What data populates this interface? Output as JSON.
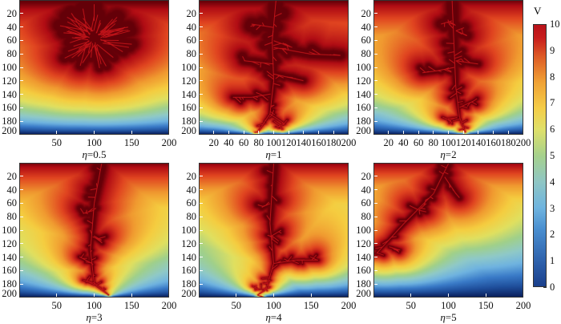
{
  "chart_data": {
    "type": "heatmap",
    "colorbar": {
      "title": "V",
      "range": [
        0,
        10
      ],
      "ticks": [
        "0",
        "1",
        "2",
        "3",
        "4",
        "5",
        "6",
        "7",
        "8",
        "9",
        "10"
      ]
    },
    "colors": [
      "#0a1f5c",
      "#1f4f9c",
      "#3a7bc8",
      "#6fb3e0",
      "#8fc9c8",
      "#a0d08a",
      "#e0e060",
      "#f5cd40",
      "#f09a30",
      "#e04420",
      "#b00c14",
      "#600008"
    ],
    "xlim": [
      0,
      200
    ],
    "ylim": [
      200,
      0
    ],
    "panels": [
      {
        "label_prefix": "η",
        "label_value": "=0.5",
        "xticks": [
          "50",
          "100",
          "150",
          "200"
        ],
        "yticks": [
          "20",
          "40",
          "60",
          "80",
          "100",
          "120",
          "140",
          "160",
          "180",
          "200"
        ]
      },
      {
        "label_prefix": "η",
        "label_value": "=1",
        "xticks": [
          "20",
          "40",
          "60",
          "80",
          "100",
          "120",
          "140",
          "160",
          "180",
          "200"
        ],
        "yticks": [
          "20",
          "40",
          "60",
          "80",
          "100",
          "120",
          "140",
          "160",
          "180",
          "200"
        ]
      },
      {
        "label_prefix": "η",
        "label_value": "=2",
        "xticks": [
          "20",
          "40",
          "60",
          "80",
          "100",
          "120",
          "140",
          "160",
          "180",
          "200"
        ],
        "yticks": [
          "20",
          "40",
          "60",
          "80",
          "100",
          "120",
          "140",
          "160",
          "180",
          "200"
        ]
      },
      {
        "label_prefix": "η",
        "label_value": "=3",
        "xticks": [
          "50",
          "100",
          "150",
          "200"
        ],
        "yticks": [
          "20",
          "40",
          "60",
          "80",
          "100",
          "120",
          "140",
          "160",
          "180",
          "200"
        ]
      },
      {
        "label_prefix": "η",
        "label_value": "=4",
        "xticks": [
          "50",
          "100",
          "150",
          "200"
        ],
        "yticks": [
          "20",
          "40",
          "60",
          "80",
          "100",
          "120",
          "140",
          "160",
          "180",
          "200"
        ]
      },
      {
        "label_prefix": "η",
        "label_value": "=5",
        "xticks": [
          "50",
          "100",
          "150",
          "200"
        ],
        "yticks": [
          "20",
          "40",
          "60",
          "80",
          "100",
          "120",
          "140",
          "160",
          "180",
          "200"
        ]
      }
    ]
  }
}
